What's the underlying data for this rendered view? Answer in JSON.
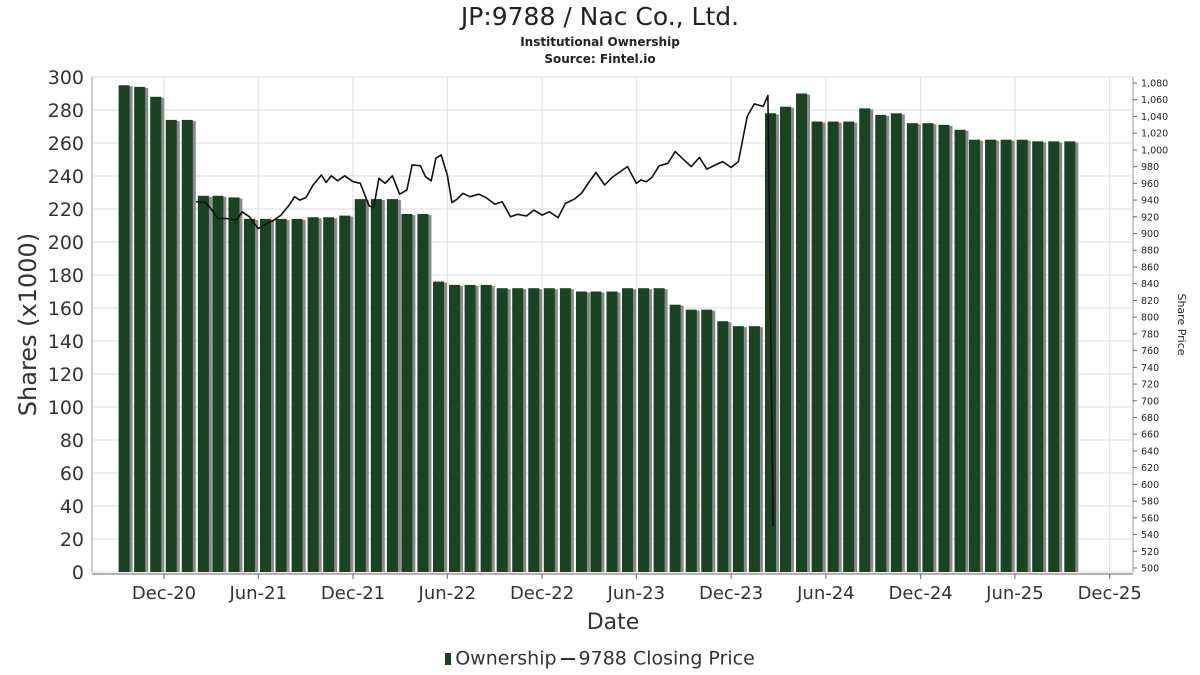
{
  "chart_data": {
    "type": "bar",
    "title": "JP:9788 / Nac Co., Ltd.",
    "subtitle": [
      "Institutional Ownership",
      "Source: Fintel.io"
    ],
    "xlabel": "Date",
    "ylabel": "Shares (x1000)",
    "y2label": "Share Price",
    "ylim": [
      0,
      300
    ],
    "y2lim": [
      500,
      1080
    ],
    "yticks": [
      "0",
      "20",
      "40",
      "60",
      "80",
      "100",
      "120",
      "140",
      "160",
      "180",
      "200",
      "220",
      "240",
      "260",
      "280",
      "300"
    ],
    "y2ticks": [
      "500",
      "520",
      "540",
      "560",
      "580",
      "600",
      "620",
      "640",
      "660",
      "680",
      "700",
      "720",
      "740",
      "760",
      "780",
      "800",
      "820",
      "840",
      "860",
      "880",
      "900",
      "920",
      "940",
      "960",
      "980",
      "1,000",
      "1,020",
      "1,040",
      "1,060",
      "1,080"
    ],
    "xticks": [
      "Dec-20",
      "Jun-21",
      "Dec-21",
      "Jun-22",
      "Dec-22",
      "Jun-23",
      "Dec-23",
      "Jun-24",
      "Dec-24",
      "Jun-25",
      "Dec-25"
    ],
    "xtick_dates": [
      "2020-12-01",
      "2021-06-01",
      "2021-12-01",
      "2022-06-01",
      "2022-12-01",
      "2023-06-01",
      "2023-12-01",
      "2024-06-01",
      "2024-12-01",
      "2025-06-01",
      "2025-12-01"
    ],
    "grid": true,
    "legend": "bottom",
    "colors": {
      "bar": "#1a4322",
      "bar_shadow": "#8a8a8a",
      "line": "#111111",
      "grid": "#dddddd"
    },
    "series": [
      {
        "name": "Ownership",
        "type": "bar",
        "x": [
          "2020-09-15",
          "2020-10-15",
          "2020-11-15",
          "2020-12-15",
          "2021-01-15",
          "2021-02-15",
          "2021-03-15",
          "2021-04-15",
          "2021-05-15",
          "2021-06-15",
          "2021-07-15",
          "2021-08-15",
          "2021-09-15",
          "2021-10-15",
          "2021-11-15",
          "2021-12-15",
          "2022-01-15",
          "2022-02-15",
          "2022-03-15",
          "2022-04-15",
          "2022-05-15",
          "2022-06-15",
          "2022-07-15",
          "2022-08-15",
          "2022-09-15",
          "2022-10-15",
          "2022-11-15",
          "2022-12-15",
          "2023-01-15",
          "2023-02-15",
          "2023-03-15",
          "2023-04-15",
          "2023-05-15",
          "2023-06-15",
          "2023-07-15",
          "2023-08-15",
          "2023-09-15",
          "2023-10-15",
          "2023-11-15",
          "2023-12-15",
          "2024-01-15",
          "2024-02-15",
          "2024-03-15",
          "2024-04-15",
          "2024-05-15",
          "2024-06-15",
          "2024-07-15",
          "2024-08-15",
          "2024-09-15",
          "2024-10-15",
          "2024-11-15",
          "2024-12-15",
          "2025-01-15",
          "2025-02-15",
          "2025-03-15",
          "2025-04-15",
          "2025-05-15",
          "2025-06-15",
          "2025-07-15",
          "2025-08-15",
          "2025-09-15"
        ],
        "values": [
          295,
          294,
          288,
          274,
          274,
          228,
          228,
          227,
          214,
          214,
          214,
          214,
          215,
          215,
          216,
          226,
          226,
          226,
          217,
          217,
          176,
          174,
          174,
          174,
          172,
          172,
          172,
          172,
          172,
          170,
          170,
          170,
          172,
          172,
          172,
          162,
          159,
          159,
          152,
          149,
          149,
          278,
          282,
          290,
          273,
          273,
          273,
          281,
          277,
          278,
          272,
          272,
          271,
          268,
          262,
          262,
          262,
          262,
          261,
          261,
          261
        ]
      },
      {
        "name": "9788 Closing Price",
        "type": "line",
        "points": [
          [
            "2021-02-01",
            938
          ],
          [
            "2021-02-20",
            937
          ],
          [
            "2021-03-01",
            930
          ],
          [
            "2021-03-15",
            918
          ],
          [
            "2021-04-01",
            918
          ],
          [
            "2021-04-20",
            916
          ],
          [
            "2021-05-01",
            926
          ],
          [
            "2021-05-15",
            920
          ],
          [
            "2021-06-01",
            906
          ],
          [
            "2021-06-15",
            911
          ],
          [
            "2021-07-01",
            916
          ],
          [
            "2021-07-15",
            922
          ],
          [
            "2021-08-01",
            935
          ],
          [
            "2021-08-10",
            944
          ],
          [
            "2021-08-20",
            940
          ],
          [
            "2021-09-01",
            943
          ],
          [
            "2021-09-15",
            958
          ],
          [
            "2021-10-01",
            970
          ],
          [
            "2021-10-10",
            961
          ],
          [
            "2021-10-20",
            969
          ],
          [
            "2021-11-01",
            963
          ],
          [
            "2021-11-15",
            969
          ],
          [
            "2021-12-01",
            962
          ],
          [
            "2021-12-15",
            960
          ],
          [
            "2022-01-01",
            933
          ],
          [
            "2022-01-10",
            931
          ],
          [
            "2022-01-20",
            966
          ],
          [
            "2022-02-01",
            960
          ],
          [
            "2022-02-15",
            969
          ],
          [
            "2022-03-01",
            947
          ],
          [
            "2022-03-15",
            952
          ],
          [
            "2022-03-25",
            982
          ],
          [
            "2022-04-10",
            981
          ],
          [
            "2022-04-20",
            968
          ],
          [
            "2022-05-01",
            963
          ],
          [
            "2022-05-10",
            990
          ],
          [
            "2022-05-20",
            994
          ],
          [
            "2022-06-01",
            970
          ],
          [
            "2022-06-10",
            937
          ],
          [
            "2022-06-20",
            941
          ],
          [
            "2022-07-01",
            948
          ],
          [
            "2022-07-15",
            944
          ],
          [
            "2022-08-01",
            947
          ],
          [
            "2022-08-15",
            943
          ],
          [
            "2022-09-01",
            935
          ],
          [
            "2022-09-15",
            938
          ],
          [
            "2022-10-01",
            920
          ],
          [
            "2022-10-15",
            923
          ],
          [
            "2022-11-01",
            921
          ],
          [
            "2022-11-15",
            928
          ],
          [
            "2022-12-01",
            922
          ],
          [
            "2022-12-15",
            926
          ],
          [
            "2023-01-01",
            919
          ],
          [
            "2023-01-15",
            936
          ],
          [
            "2023-02-01",
            941
          ],
          [
            "2023-02-15",
            948
          ],
          [
            "2023-03-01",
            961
          ],
          [
            "2023-03-15",
            973
          ],
          [
            "2023-04-01",
            958
          ],
          [
            "2023-04-15",
            967
          ],
          [
            "2023-05-01",
            974
          ],
          [
            "2023-05-15",
            980
          ],
          [
            "2023-06-01",
            960
          ],
          [
            "2023-06-10",
            964
          ],
          [
            "2023-06-20",
            962
          ],
          [
            "2023-07-01",
            967
          ],
          [
            "2023-07-15",
            981
          ],
          [
            "2023-08-01",
            984
          ],
          [
            "2023-08-15",
            998
          ],
          [
            "2023-09-01",
            988
          ],
          [
            "2023-09-15",
            980
          ],
          [
            "2023-10-01",
            991
          ],
          [
            "2023-10-15",
            977
          ],
          [
            "2023-11-01",
            982
          ],
          [
            "2023-11-15",
            986
          ],
          [
            "2023-12-01",
            979
          ],
          [
            "2023-12-15",
            986
          ],
          [
            "2024-01-01",
            1040
          ],
          [
            "2024-01-15",
            1055
          ],
          [
            "2024-02-01",
            1052
          ],
          [
            "2024-02-10",
            1065
          ],
          [
            "2024-02-20",
            550
          ]
        ]
      }
    ]
  }
}
